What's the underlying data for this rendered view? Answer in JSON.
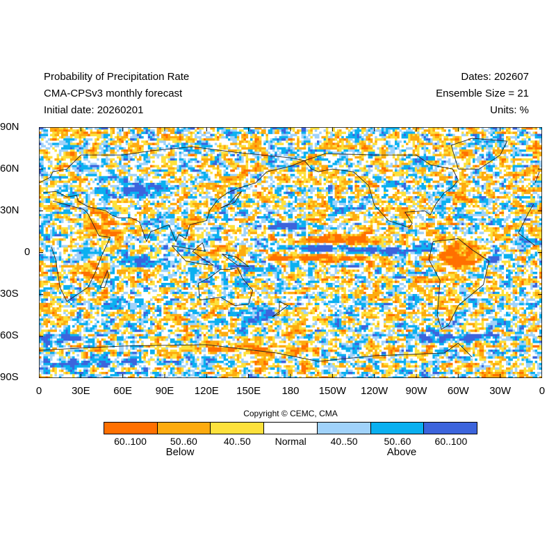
{
  "header": {
    "title": "Probability of Precipitation Rate",
    "subtitle": "CMA-CPSv3 monthly forecast",
    "initial_date": "Initial date: 20260201",
    "dates": "Dates: 202607",
    "ensemble": "Ensemble Size = 21",
    "units": "Units: %"
  },
  "axes": {
    "lat_labels": [
      "90N",
      "60N",
      "30N",
      "0",
      "30S",
      "60S",
      "90S"
    ],
    "lon_labels": [
      "0",
      "30E",
      "60E",
      "90E",
      "120E",
      "150E",
      "180",
      "150W",
      "120W",
      "90W",
      "60W",
      "30W",
      "0"
    ]
  },
  "copyright": "Copyright © CEMC, CMA",
  "legend": {
    "categories": [
      {
        "label": "60..100",
        "color": "#ff7000"
      },
      {
        "label": "50..60",
        "color": "#fdab0f"
      },
      {
        "label": "40..50",
        "color": "#fde13c"
      },
      {
        "label": "Normal",
        "color": "#ffffff"
      },
      {
        "label": "40..50",
        "color": "#a0d2fa"
      },
      {
        "label": "50..60",
        "color": "#0ab0f0"
      },
      {
        "label": "60..100",
        "color": "#3c64dc"
      }
    ],
    "below_label": "Below",
    "above_label": "Above"
  },
  "colors": {
    "coastline": "#222222",
    "frame": "#000000"
  }
}
